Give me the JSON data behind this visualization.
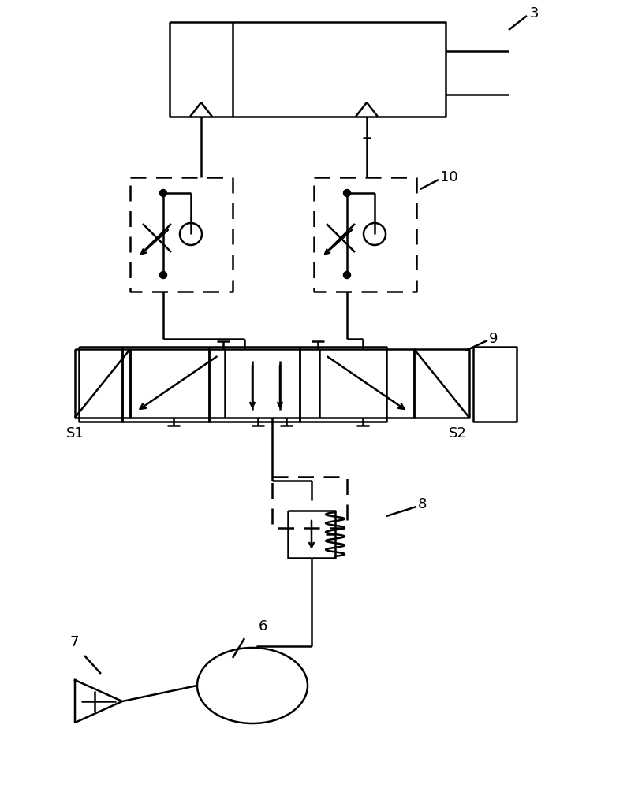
{
  "bg_color": "#ffffff",
  "line_color": "#000000",
  "label_3": "3",
  "label_10": "10",
  "label_9": "9",
  "label_8": "8",
  "label_7": "7",
  "label_6": "6",
  "label_S1": "S1",
  "label_S2": "S2",
  "figsize": [
    7.95,
    10.0
  ],
  "dpi": 100
}
